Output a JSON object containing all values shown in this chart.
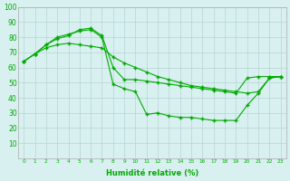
{
  "xlabel": "Humidité relative (%)",
  "x": [
    0,
    1,
    2,
    3,
    4,
    5,
    6,
    7,
    8,
    9,
    10,
    11,
    12,
    13,
    14,
    15,
    16,
    17,
    18,
    19,
    20,
    21,
    22,
    23
  ],
  "line1": [
    64,
    69,
    75,
    80,
    82,
    84,
    85,
    80,
    49,
    46,
    44,
    29,
    30,
    28,
    27,
    27,
    26,
    25,
    25,
    25,
    35,
    43,
    53,
    54
  ],
  "line2": [
    64,
    69,
    73,
    75,
    76,
    75,
    74,
    73,
    67,
    63,
    60,
    57,
    54,
    52,
    50,
    48,
    47,
    46,
    45,
    44,
    43,
    44,
    53,
    54
  ],
  "line3": [
    64,
    69,
    75,
    79,
    81,
    85,
    86,
    81,
    60,
    52,
    52,
    51,
    50,
    49,
    48,
    47,
    46,
    45,
    44,
    43,
    53,
    54,
    54,
    54
  ],
  "line_color": "#00aa00",
  "bg_color": "#d8f0f0",
  "grid_color": "#b8d4d4",
  "ylim": [
    0,
    100
  ],
  "xlim": [
    -0.5,
    23.5
  ],
  "yticks": [
    10,
    20,
    30,
    40,
    50,
    60,
    70,
    80,
    90,
    100
  ],
  "xticks": [
    0,
    1,
    2,
    3,
    4,
    5,
    6,
    7,
    8,
    9,
    10,
    11,
    12,
    13,
    14,
    15,
    16,
    17,
    18,
    19,
    20,
    21,
    22,
    23
  ]
}
